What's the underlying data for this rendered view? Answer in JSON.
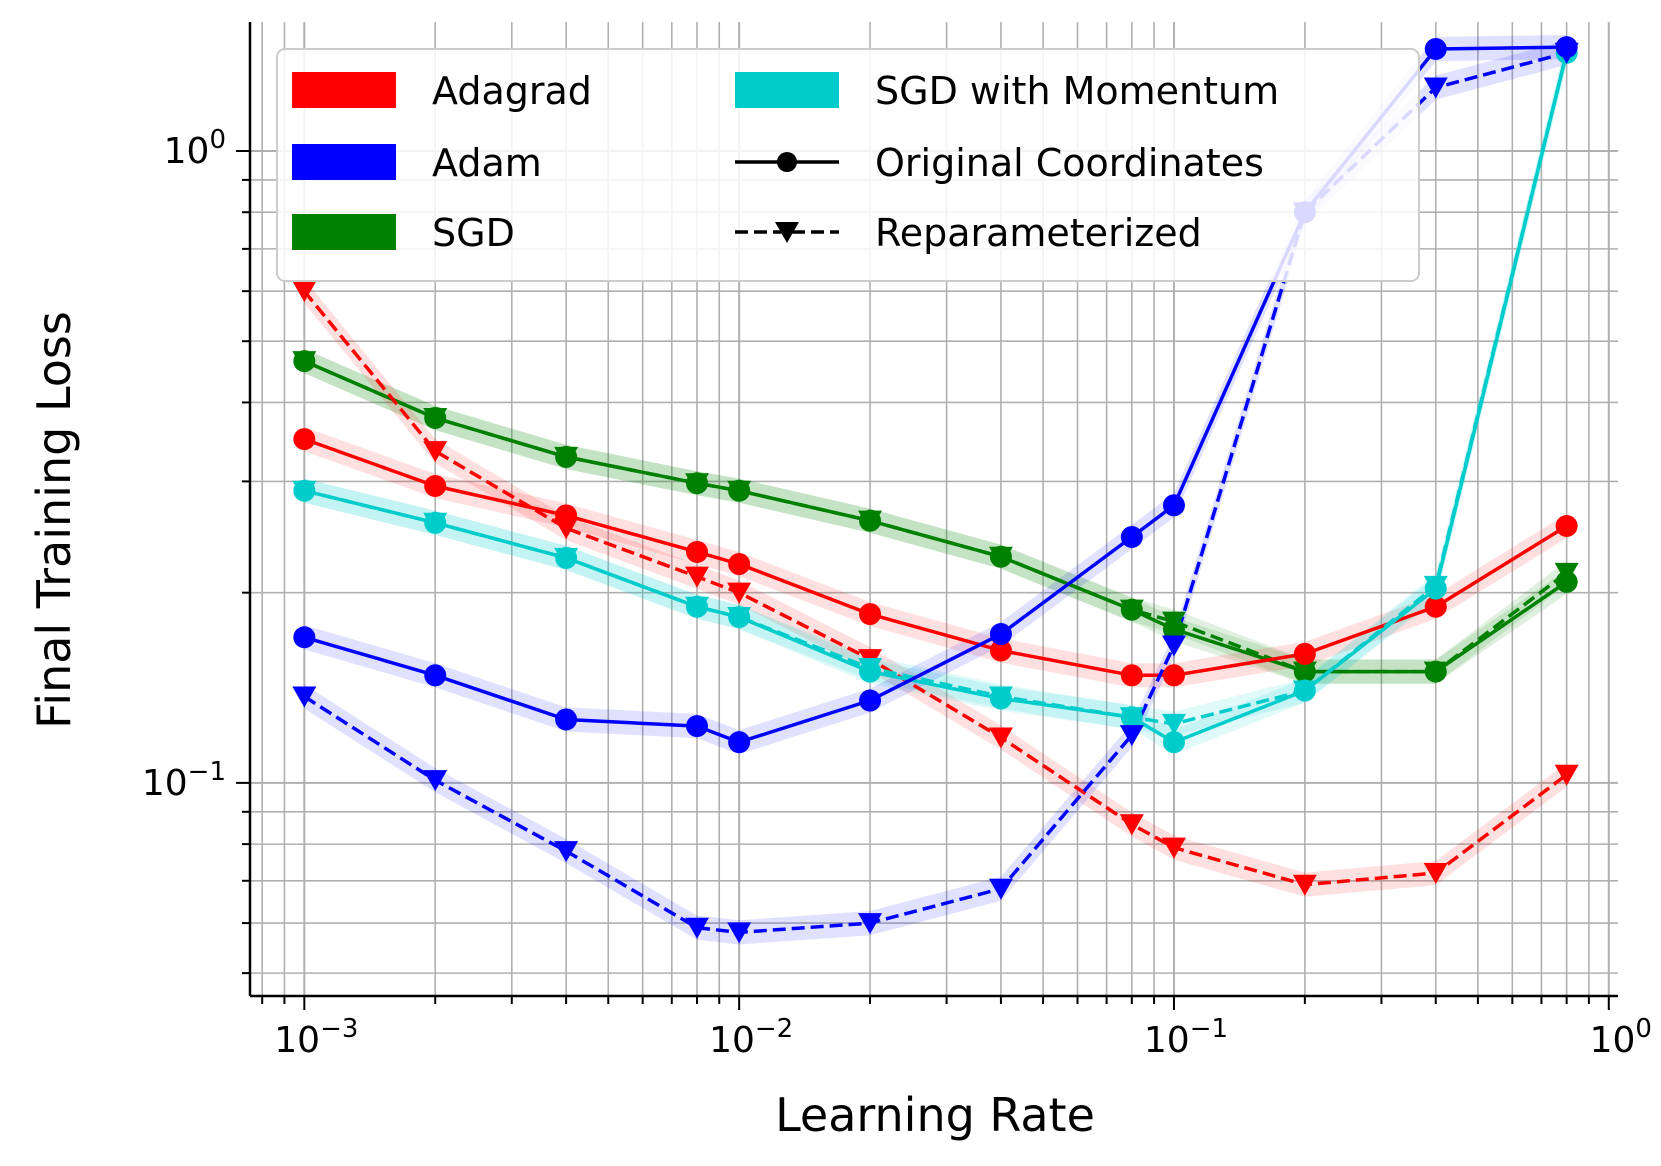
{
  "chart_data": {
    "type": "line",
    "xscale": "log",
    "yscale": "log",
    "xlabel": "Learning Rate",
    "ylabel": "Final Training Loss",
    "xlim": [
      0.00075,
      1.05
    ],
    "ylim": [
      0.046,
      1.6
    ],
    "grid": true,
    "legend_position": "top",
    "x": [
      0.001,
      0.002,
      0.004,
      0.008,
      0.01,
      0.02,
      0.04,
      0.08,
      0.1,
      0.2,
      0.4,
      0.8
    ],
    "x_ticks": [
      {
        "value": 0.001,
        "base": "10",
        "exp": "−3"
      },
      {
        "value": 0.01,
        "base": "10",
        "exp": "−2"
      },
      {
        "value": 0.1,
        "base": "10",
        "exp": "−1"
      },
      {
        "value": 1,
        "base": "10",
        "exp": "0"
      }
    ],
    "y_ticks": [
      {
        "value": 0.1,
        "base": "10",
        "exp": "−1"
      },
      {
        "value": 1,
        "base": "10",
        "exp": "0"
      }
    ],
    "optimizers": [
      {
        "name": "Adagrad",
        "color": "#ff0000"
      },
      {
        "name": "Adam",
        "color": "#0000ff"
      },
      {
        "name": "SGD",
        "color": "#008000"
      },
      {
        "name": "SGD with Momentum",
        "color": "#00cccc"
      }
    ],
    "styles": [
      {
        "name": "Original Coordinates",
        "marker": "circle",
        "dash": "solid"
      },
      {
        "name": "Reparameterized",
        "marker": "triangle-down",
        "dash": "dashed"
      }
    ],
    "series": [
      {
        "name": "Adagrad (Original Coordinates)",
        "optimizer": "Adagrad",
        "style": "Original Coordinates",
        "values": [
          0.35,
          0.295,
          0.265,
          0.232,
          0.222,
          0.185,
          0.162,
          0.148,
          0.148,
          0.16,
          0.19,
          0.255
        ]
      },
      {
        "name": "Adagrad (Reparameterized)",
        "optimizer": "Adagrad",
        "style": "Reparameterized",
        "values": [
          0.6,
          0.335,
          0.253,
          0.212,
          0.2,
          0.157,
          0.118,
          0.086,
          0.079,
          0.069,
          0.072,
          0.103
        ]
      },
      {
        "name": "Adam (Original Coordinates)",
        "optimizer": "Adam",
        "style": "Original Coordinates",
        "values": [
          0.17,
          0.148,
          0.126,
          0.123,
          0.116,
          0.135,
          0.172,
          0.245,
          0.275,
          0.8,
          1.45,
          1.46
        ]
      },
      {
        "name": "Adam (Reparameterized)",
        "optimizer": "Adam",
        "style": "Reparameterized",
        "values": [
          0.137,
          0.101,
          0.078,
          0.059,
          0.058,
          0.06,
          0.068,
          0.119,
          0.165,
          0.8,
          1.26,
          1.43
        ]
      },
      {
        "name": "SGD (Original Coordinates)",
        "optimizer": "SGD",
        "style": "Original Coordinates",
        "values": [
          0.465,
          0.378,
          0.328,
          0.298,
          0.29,
          0.26,
          0.228,
          0.188,
          0.175,
          0.15,
          0.15,
          0.208
        ]
      },
      {
        "name": "SGD (Reparameterized)",
        "optimizer": "SGD",
        "style": "Reparameterized",
        "values": [
          0.465,
          0.378,
          0.328,
          0.298,
          0.29,
          0.26,
          0.228,
          0.188,
          0.18,
          0.15,
          0.15,
          0.215
        ]
      },
      {
        "name": "SGD with Momentum (Original Coordinates)",
        "optimizer": "SGD with Momentum",
        "style": "Original Coordinates",
        "values": [
          0.29,
          0.258,
          0.227,
          0.19,
          0.183,
          0.15,
          0.136,
          0.127,
          0.116,
          0.14,
          0.203,
          1.43
        ]
      },
      {
        "name": "SGD with Momentum (Reparameterized)",
        "optimizer": "SGD with Momentum",
        "style": "Reparameterized",
        "values": [
          0.29,
          0.258,
          0.227,
          0.19,
          0.183,
          0.152,
          0.137,
          0.127,
          0.124,
          0.14,
          0.205,
          1.43
        ]
      }
    ]
  }
}
